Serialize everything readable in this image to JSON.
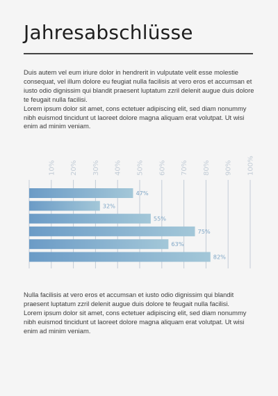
{
  "page": {
    "title": "Jahresabschlüsse",
    "intro": [
      "Duis autem vel eum iriure dolor in hendrerit in vulputate velit esse molestie consequat, vel illum dolore eu feugiat nulla facilisis at vero eros et accumsan et iusto odio dignissim qui blandit praesent luptatum zzril delenit augue duis dolore te feugait nulla facilisi.",
      "Lorem ipsum dolor sit amet, cons ectetuer adipiscing elit, sed diam nonummy nibh euismod tincidunt ut laoreet dolore magna aliquam erat volutpat. Ut wisi enim ad minim veniam."
    ],
    "outro": [
      "Nulla facilisis at vero eros et accumsan et iusto odio dignissim qui blandit praesent luptatum zzril delenit augue duis dolore te feugait nulla facilisi.",
      "Lorem ipsum dolor sit amet, cons ectetuer adipiscing elit, sed diam nonummy nibh euismod tincidunt ut laoreet dolore magna aliquam erat volutpat. Ut wisi enim ad minim veniam."
    ]
  },
  "chart_data": {
    "type": "bar",
    "orientation": "horizontal",
    "x_ticks": [
      "10%",
      "20%",
      "30%",
      "40%",
      "50%",
      "60%",
      "70%",
      "80%",
      "90%",
      "100%"
    ],
    "xlim": [
      0,
      100
    ],
    "values": [
      47,
      32,
      55,
      75,
      63,
      82
    ],
    "value_labels": [
      "47%",
      "32%",
      "55%",
      "75%",
      "63%",
      "82%"
    ],
    "grid": true,
    "bar_color_start": "#6b9bc6",
    "bar_color_end": "#a3c7d8",
    "tick_color": "#c2ccd6",
    "label_color": "#7fa6c6"
  }
}
